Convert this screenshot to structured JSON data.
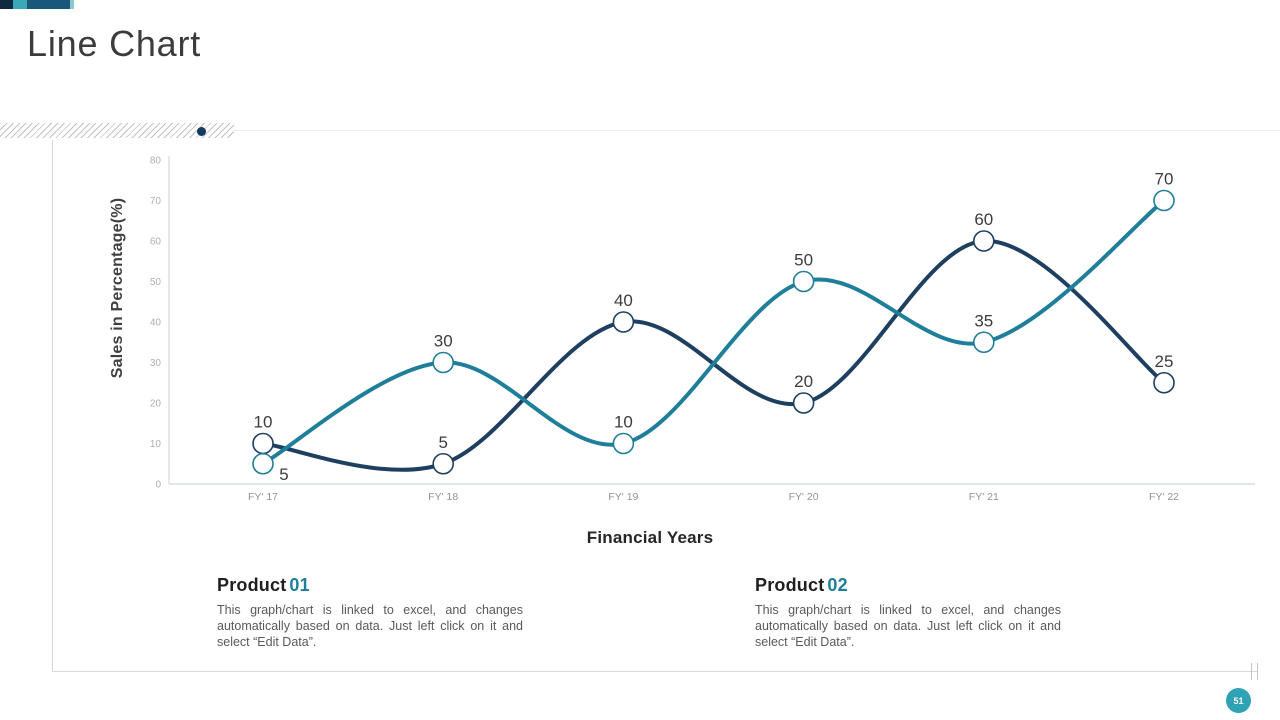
{
  "slide": {
    "title": "Line Chart",
    "page_number": "51",
    "accent_bar_colors": [
      "#0e2940",
      "#3ba8b8",
      "#19587a",
      "#8cc7d2"
    ],
    "divider_dot_color": "#123a5c",
    "badge_color": "#2fa2b3"
  },
  "chart_data": {
    "type": "line",
    "title": "",
    "xlabel": "Financial Years",
    "ylabel": "Sales in Percentage(%)",
    "categories": [
      "FY' 17",
      "FY' 18",
      "FY' 19",
      "FY' 20",
      "FY' 21",
      "FY' 22"
    ],
    "ylim": [
      0,
      80
    ],
    "ytick_step": 10,
    "grid": false,
    "smooth": true,
    "legend_position": "none",
    "axis_colors": {
      "y_axis_line": "#d9d9d9",
      "x_axis_line": "#cfe0ea",
      "ytick_label": "#b0b0b0",
      "xtick_label": "#939393",
      "data_label": "#3d3d3d"
    },
    "series": [
      {
        "name": "Product 01",
        "color": "#1e3f5f",
        "values": [
          10,
          5,
          40,
          20,
          60,
          25
        ],
        "label_positions": [
          "above",
          "above",
          "above",
          "above",
          "above",
          "above"
        ]
      },
      {
        "name": "Product 02",
        "color": "#1f7e99",
        "values": [
          5,
          30,
          10,
          50,
          35,
          70
        ],
        "label_positions": [
          "below-right",
          "above",
          "above",
          "above",
          "above",
          "above"
        ]
      }
    ]
  },
  "footnotes": [
    {
      "heading": "Product",
      "number": "01",
      "body": "This graph/chart is linked to excel, and changes automatically based on data. Just left click on it and select “Edit Data”."
    },
    {
      "heading": "Product",
      "number": "02",
      "body": "This graph/chart is linked to excel, and changes automatically based on data. Just left click on it and select “Edit Data”."
    }
  ]
}
